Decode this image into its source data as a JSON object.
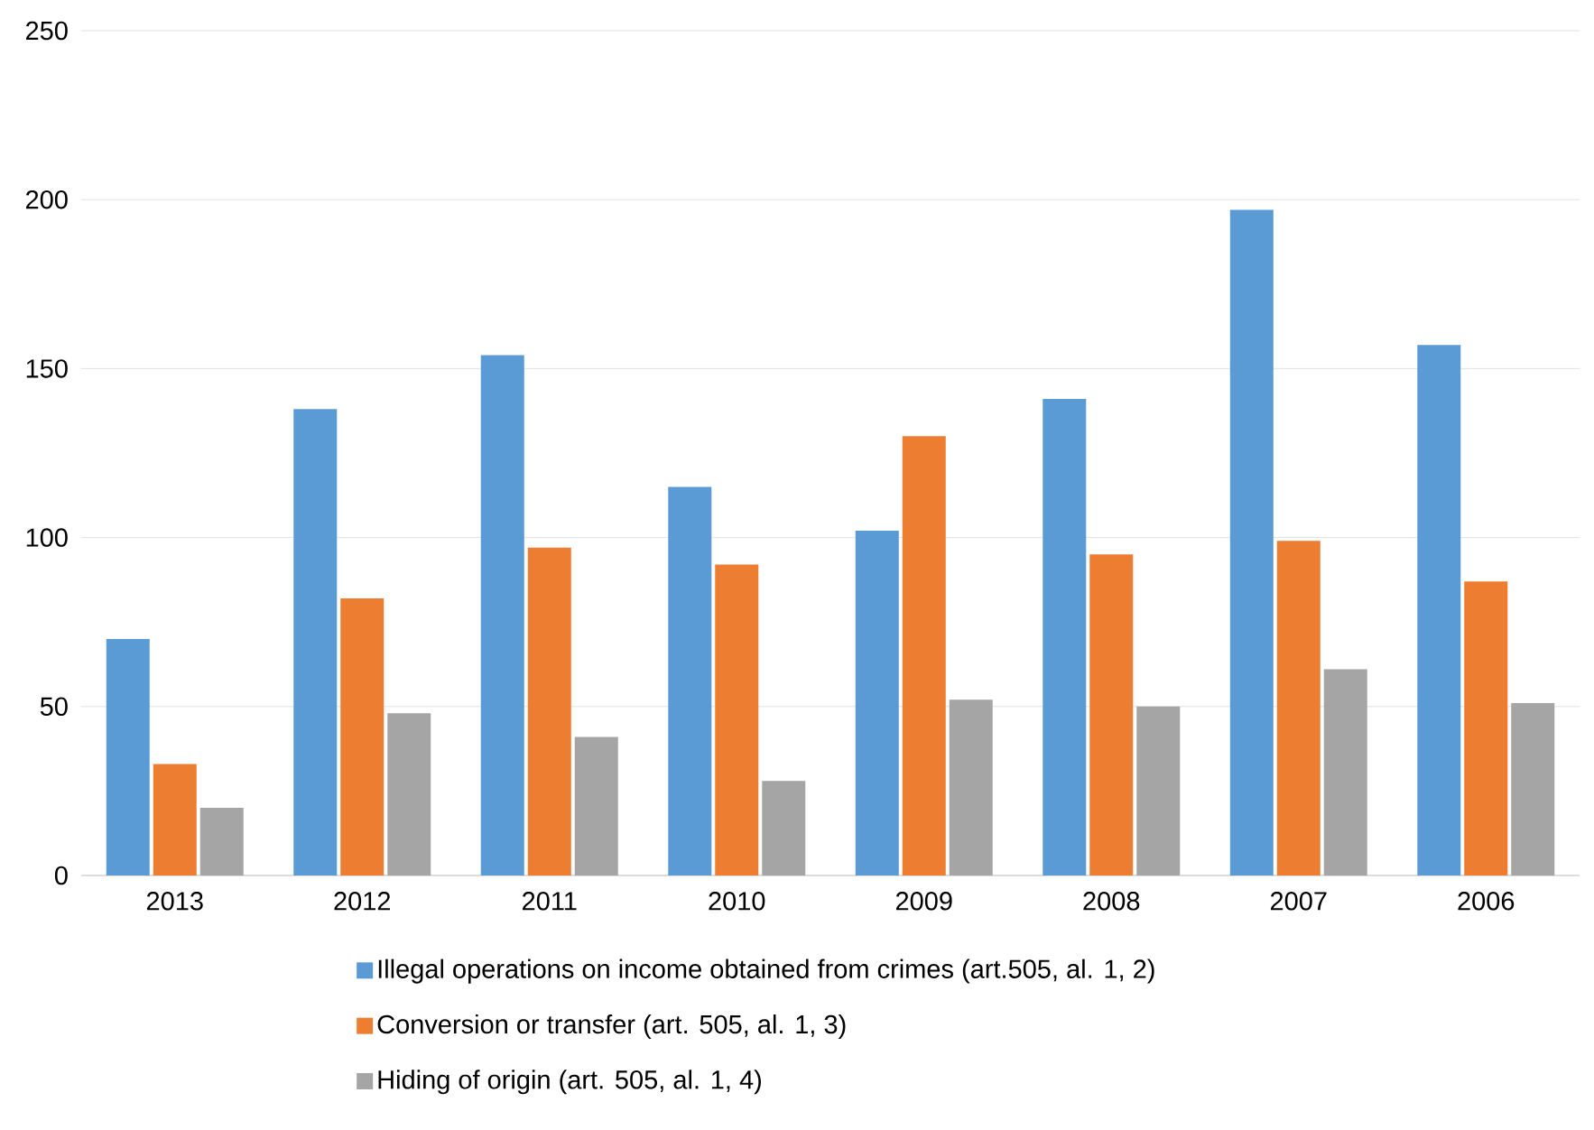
{
  "chart_data": {
    "type": "bar",
    "categories": [
      "2013",
      "2012",
      "2011",
      "2010",
      "2009",
      "2008",
      "2007",
      "2006"
    ],
    "series": [
      {
        "name": "Illegal operations on income obtained from crimes (art.505, al. 1, 2)",
        "color": "#5b9bd5",
        "values": [
          70,
          138,
          154,
          115,
          102,
          141,
          197,
          157
        ]
      },
      {
        "name": "Conversion or transfer (art. 505, al. 1, 3)",
        "color": "#ed7d31",
        "values": [
          33,
          82,
          97,
          92,
          130,
          95,
          99,
          87
        ]
      },
      {
        "name": "Hiding of origin (art. 505, al. 1, 4)",
        "color": "#a5a5a5",
        "values": [
          20,
          48,
          41,
          28,
          52,
          50,
          61,
          51
        ]
      }
    ],
    "ylim": [
      0,
      250
    ],
    "yticks": [
      0,
      50,
      100,
      150,
      200,
      250
    ],
    "grid": "y",
    "legend": "bottom"
  }
}
